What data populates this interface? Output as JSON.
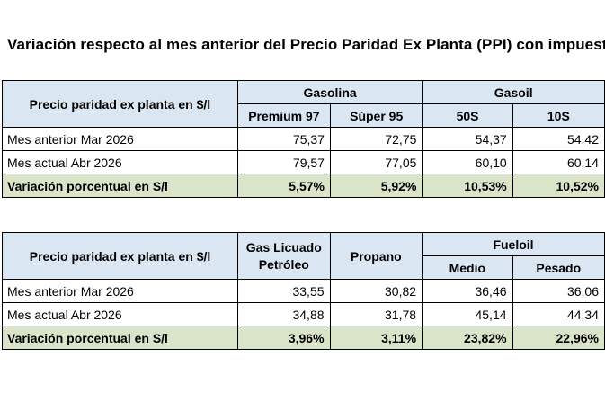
{
  "title": "Variación respecto al mes anterior del Precio Paridad Ex Planta (PPI) con impuestos",
  "table1": {
    "row_header": "Precio paridad ex planta en $/l",
    "groups": {
      "gasolina": "Gasolina",
      "gasoil": "Gasoil"
    },
    "columns": [
      "Premium 97",
      "Súper 95",
      "50S",
      "10S"
    ],
    "rows": [
      {
        "label": "Mes anterior Mar 2026",
        "values": [
          "75,37",
          "72,75",
          "54,37",
          "54,42"
        ]
      },
      {
        "label": "Mes actual Abr 2026",
        "values": [
          "79,57",
          "77,05",
          "60,10",
          "60,14"
        ]
      },
      {
        "label": "Variación porcentual en S/l",
        "values": [
          "5,57%",
          "5,92%",
          "10,53%",
          "10,52%"
        ]
      }
    ]
  },
  "table2": {
    "row_header": "Precio paridad ex planta en $/l",
    "columns_top": {
      "glp": "Gas Licuado Petróleo",
      "propano": "Propano",
      "fueloil": "Fueloil"
    },
    "sub_columns": [
      "Medio",
      "Pesado"
    ],
    "rows": [
      {
        "label": "Mes anterior Mar 2026",
        "values": [
          "33,55",
          "30,82",
          "36,46",
          "36,06"
        ]
      },
      {
        "label": "Mes actual Abr 2026",
        "values": [
          "34,88",
          "31,78",
          "45,14",
          "44,34"
        ]
      },
      {
        "label": "Variación porcentual en S/l",
        "values": [
          "3,96%",
          "3,11%",
          "23,82%",
          "22,96%"
        ]
      }
    ]
  }
}
